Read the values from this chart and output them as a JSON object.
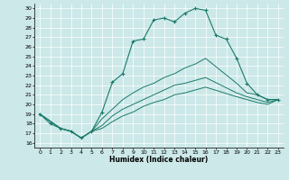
{
  "title": "",
  "xlabel": "Humidex (Indice chaleur)",
  "ylabel": "",
  "xlim": [
    -0.5,
    23.5
  ],
  "ylim": [
    15.5,
    30.5
  ],
  "xticks": [
    0,
    1,
    2,
    3,
    4,
    5,
    6,
    7,
    8,
    9,
    10,
    11,
    12,
    13,
    14,
    15,
    16,
    17,
    18,
    19,
    20,
    21,
    22,
    23
  ],
  "yticks": [
    16,
    17,
    18,
    19,
    20,
    21,
    22,
    23,
    24,
    25,
    26,
    27,
    28,
    29,
    30
  ],
  "background_color": "#cce8e8",
  "grid_color": "#ffffff",
  "line_color": "#1a7a6a",
  "curve_main": {
    "x": [
      0,
      1,
      2,
      3,
      4,
      5,
      6,
      7,
      8,
      9,
      10,
      11,
      12,
      13,
      14,
      15,
      16,
      17,
      18,
      19,
      20,
      21,
      22,
      23
    ],
    "y": [
      19.0,
      18.0,
      17.5,
      17.2,
      16.5,
      17.2,
      19.2,
      22.3,
      23.2,
      26.6,
      26.8,
      28.8,
      29.0,
      28.6,
      29.5,
      30.0,
      29.8,
      27.2,
      26.8,
      24.8,
      22.2,
      21.0,
      20.5,
      20.5
    ]
  },
  "curve2": {
    "x": [
      0,
      2,
      3,
      4,
      5,
      6,
      7,
      8,
      9,
      10,
      11,
      12,
      13,
      14,
      15,
      16,
      19,
      20,
      21,
      22,
      23
    ],
    "y": [
      19.0,
      17.5,
      17.2,
      16.5,
      17.2,
      18.5,
      19.5,
      20.5,
      21.2,
      21.8,
      22.2,
      22.8,
      23.2,
      23.8,
      24.2,
      24.8,
      22.2,
      21.2,
      21.0,
      20.5,
      20.5
    ]
  },
  "curve3": {
    "x": [
      0,
      2,
      3,
      4,
      5,
      6,
      7,
      8,
      9,
      10,
      11,
      12,
      13,
      14,
      15,
      16,
      19,
      20,
      21,
      22,
      23
    ],
    "y": [
      19.0,
      17.5,
      17.2,
      16.5,
      17.2,
      17.8,
      18.8,
      19.5,
      20.0,
      20.5,
      21.0,
      21.5,
      22.0,
      22.2,
      22.5,
      22.8,
      21.2,
      20.8,
      20.5,
      20.2,
      20.5
    ]
  },
  "curve4": {
    "x": [
      0,
      2,
      3,
      4,
      5,
      6,
      7,
      8,
      9,
      10,
      11,
      12,
      13,
      14,
      15,
      16,
      19,
      20,
      21,
      22,
      23
    ],
    "y": [
      19.0,
      17.5,
      17.2,
      16.5,
      17.2,
      17.5,
      18.2,
      18.8,
      19.2,
      19.8,
      20.2,
      20.5,
      21.0,
      21.2,
      21.5,
      21.8,
      20.8,
      20.5,
      20.2,
      20.0,
      20.5
    ]
  }
}
